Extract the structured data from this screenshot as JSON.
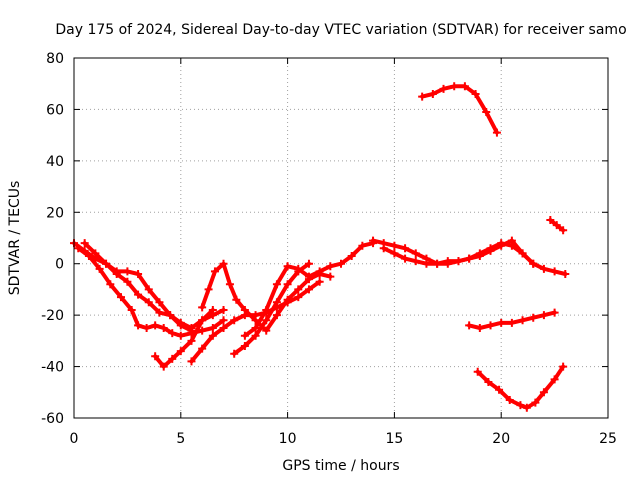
{
  "chart_data": {
    "type": "scatter",
    "title": "Day 175 of 2024, Sidereal Day-to-day VTEC variation (SDTVAR) for receiver samo",
    "xlabel": "GPS time / hours",
    "ylabel": "SDTVAR / TECUs",
    "xlim": [
      0,
      25
    ],
    "ylim": [
      -60,
      80
    ],
    "x_ticks": [
      0,
      5,
      10,
      15,
      20,
      25
    ],
    "y_ticks": [
      -60,
      -40,
      -20,
      0,
      20,
      40,
      60,
      80
    ],
    "x_tick_labels": [
      "0",
      "5",
      "10",
      "15",
      "20",
      "25"
    ],
    "y_tick_labels": [
      "-60",
      "-40",
      "-20",
      "0",
      "20",
      "40",
      "60",
      "80"
    ],
    "grid": true,
    "legend": "none",
    "marker": "plus",
    "color": "#ff0000",
    "series": [
      {
        "name": "track-1",
        "x": [
          0.0,
          0.5,
          1.0,
          1.5,
          2.0,
          2.5,
          3.0,
          3.5,
          4.0,
          4.5,
          5.0,
          5.5
        ],
        "y": [
          8,
          5,
          2,
          0,
          -4,
          -7,
          -12,
          -15,
          -19,
          -20,
          -24,
          -26
        ]
      },
      {
        "name": "track-2",
        "x": [
          0.2,
          0.7,
          1.2,
          1.7,
          2.2,
          2.7,
          3.0,
          3.4,
          3.8,
          4.2,
          4.6,
          5.0,
          5.5,
          6.0,
          6.5,
          7.0
        ],
        "y": [
          6,
          3,
          -2,
          -8,
          -13,
          -18,
          -24,
          -25,
          -24,
          -25,
          -27,
          -28,
          -27,
          -26,
          -25,
          -22
        ]
      },
      {
        "name": "track-3",
        "x": [
          0.5,
          1.0,
          1.5,
          2.0,
          2.5,
          3.0,
          3.5,
          4.0,
          4.5,
          5.0,
          5.5,
          6.0,
          6.5,
          7.0
        ],
        "y": [
          8,
          4,
          0,
          -3,
          -3,
          -4,
          -10,
          -15,
          -20,
          -23,
          -25,
          -22,
          -20,
          -18
        ]
      },
      {
        "name": "track-4",
        "x": [
          3.8,
          4.2,
          4.6,
          5.0,
          5.5,
          6.0,
          6.5
        ],
        "y": [
          -36,
          -40,
          -37,
          -34,
          -30,
          -22,
          -18
        ]
      },
      {
        "name": "track-5",
        "x": [
          5.5,
          6.0,
          6.5,
          7.0,
          7.5,
          8.0,
          8.5,
          9.0,
          9.5,
          10.0,
          10.5,
          11.0,
          11.5
        ],
        "y": [
          -38,
          -33,
          -28,
          -25,
          -22,
          -20,
          -20,
          -19,
          -17,
          -15,
          -13,
          -10,
          -7
        ]
      },
      {
        "name": "track-6",
        "x": [
          6.0,
          6.3,
          6.6,
          7.0,
          7.3,
          7.6,
          8.0,
          8.5,
          9.0,
          9.5,
          10.0,
          10.5,
          11.0,
          11.5,
          12.0
        ],
        "y": [
          -17,
          -10,
          -3,
          0,
          -8,
          -14,
          -18,
          -22,
          -26,
          -20,
          -14,
          -10,
          -6,
          -4,
          -5
        ]
      },
      {
        "name": "track-7",
        "x": [
          7.5,
          8.0,
          8.5,
          9.0,
          9.5,
          10.0,
          10.5,
          11.0
        ],
        "y": [
          -35,
          -32,
          -28,
          -22,
          -15,
          -8,
          -3,
          0
        ]
      },
      {
        "name": "track-8",
        "x": [
          8.0,
          8.5,
          9.0,
          9.5,
          10.0,
          10.5,
          11.0,
          11.5,
          12.0,
          12.5,
          13.0,
          13.5,
          14.0
        ],
        "y": [
          -28,
          -25,
          -18,
          -8,
          -1,
          -2,
          -5,
          -3,
          -1,
          0,
          3,
          7,
          8
        ]
      },
      {
        "name": "track-9",
        "x": [
          14.0,
          14.5,
          15.0,
          15.5,
          16.0,
          16.5,
          17.0,
          17.5,
          18.0,
          18.5,
          19.0,
          19.5,
          20.0,
          20.5,
          21.0,
          21.5,
          22.0,
          22.5,
          23.0
        ],
        "y": [
          9,
          8,
          7,
          6,
          4,
          2,
          0,
          1,
          1,
          2,
          4,
          6,
          8,
          7,
          4,
          0,
          -2,
          -3,
          -4
        ]
      },
      {
        "name": "track-10",
        "x": [
          14.5,
          15.0,
          15.5,
          16.0,
          16.5,
          17.0,
          17.5,
          18.0,
          18.5,
          19.0,
          19.5,
          20.0,
          20.5,
          21.0,
          21.5
        ],
        "y": [
          6,
          4,
          2,
          1,
          0,
          0,
          0,
          1,
          2,
          3,
          5,
          7,
          9,
          4,
          0
        ]
      },
      {
        "name": "track-11",
        "x": [
          16.3,
          16.8,
          17.3,
          17.8,
          18.3,
          18.8,
          19.3,
          19.8
        ],
        "y": [
          65,
          66,
          68,
          69,
          69,
          66,
          59,
          51
        ]
      },
      {
        "name": "track-12",
        "x": [
          18.5,
          19.0,
          19.5,
          20.0,
          20.5,
          21.0,
          21.5,
          22.0,
          22.5
        ],
        "y": [
          -24,
          -25,
          -24,
          -23,
          -23,
          -22,
          -21,
          -20,
          -19
        ]
      },
      {
        "name": "track-13",
        "x": [
          18.9,
          19.4,
          19.9,
          20.4,
          20.9,
          21.2,
          21.6,
          22.0,
          22.5,
          22.9
        ],
        "y": [
          -42,
          -46,
          -49,
          -53,
          -55,
          -56,
          -54,
          -50,
          -45,
          -40
        ]
      },
      {
        "name": "track-14",
        "x": [
          22.3,
          22.6,
          22.9
        ],
        "y": [
          17,
          15,
          13
        ]
      }
    ]
  }
}
